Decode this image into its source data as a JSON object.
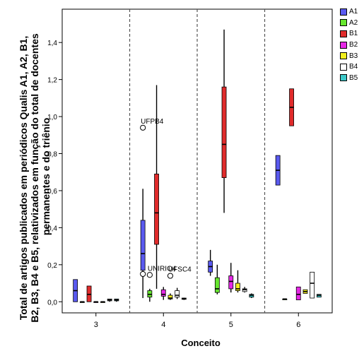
{
  "chart_data": {
    "type": "boxplot",
    "xlabel": "Conceito",
    "ylabel_lines": [
      "Total de artigos publicados em periódicos Qualis A1, A2, B1,",
      "B2, B3, B4 e B5, relativizados em função do total de docentes",
      "permanentes e do triênio"
    ],
    "categories": [
      "3",
      "4",
      "5",
      "6"
    ],
    "ylim": [
      -0.06,
      1.58
    ],
    "yticks": [
      0.0,
      0.2,
      0.4,
      0.6,
      0.8,
      1.0,
      1.2,
      1.4
    ],
    "ytick_labels": [
      "0,0",
      "0,2",
      "0,4",
      "0,6",
      "0,8",
      "1,0",
      "1,2",
      "1,4"
    ],
    "group_separators": "dashed",
    "grid": false,
    "legend_position": "right",
    "series": [
      {
        "name": "A1",
        "color": "#5a5af0"
      },
      {
        "name": "A2",
        "color": "#66e62e"
      },
      {
        "name": "B1",
        "color": "#e02b2b"
      },
      {
        "name": "B2",
        "color": "#e628e6"
      },
      {
        "name": "B3",
        "color": "#f2f01e"
      },
      {
        "name": "B4",
        "color": "#ffffff"
      },
      {
        "name": "B5",
        "color": "#3cc8c8"
      }
    ],
    "boxes": [
      {
        "category": "3",
        "series": "A1",
        "min": 0.0,
        "q1": 0.0,
        "median": 0.06,
        "q3": 0.12,
        "max": 0.12
      },
      {
        "category": "3",
        "series": "A2",
        "min": 0.0,
        "q1": 0.0,
        "median": 0.0,
        "q3": 0.0,
        "max": 0.0
      },
      {
        "category": "3",
        "series": "B1",
        "min": 0.0,
        "q1": 0.0,
        "median": 0.04,
        "q3": 0.085,
        "max": 0.085
      },
      {
        "category": "3",
        "series": "B2",
        "min": 0.0,
        "q1": 0.0,
        "median": 0.0,
        "q3": 0.0,
        "max": 0.0
      },
      {
        "category": "3",
        "series": "B3",
        "min": 0.0,
        "q1": 0.0,
        "median": 0.0,
        "q3": 0.0,
        "max": 0.0
      },
      {
        "category": "3",
        "series": "B4",
        "min": 0.0,
        "q1": 0.005,
        "median": 0.01,
        "q3": 0.015,
        "max": 0.015
      },
      {
        "category": "3",
        "series": "B5",
        "min": 0.0,
        "q1": 0.005,
        "median": 0.01,
        "q3": 0.015,
        "max": 0.015
      },
      {
        "category": "4",
        "series": "A1",
        "min": 0.02,
        "q1": 0.17,
        "median": 0.26,
        "q3": 0.44,
        "max": 0.61
      },
      {
        "category": "4",
        "series": "A2",
        "min": 0.0,
        "q1": 0.025,
        "median": 0.04,
        "q3": 0.06,
        "max": 0.07
      },
      {
        "category": "4",
        "series": "B1",
        "min": 0.07,
        "q1": 0.31,
        "median": 0.48,
        "q3": 0.69,
        "max": 1.17
      },
      {
        "category": "4",
        "series": "B2",
        "min": 0.01,
        "q1": 0.03,
        "median": 0.04,
        "q3": 0.065,
        "max": 0.08
      },
      {
        "category": "4",
        "series": "B3",
        "min": 0.01,
        "q1": 0.015,
        "median": 0.02,
        "q3": 0.035,
        "max": 0.045
      },
      {
        "category": "4",
        "series": "B4",
        "min": 0.015,
        "q1": 0.025,
        "median": 0.035,
        "q3": 0.06,
        "max": 0.075
      },
      {
        "category": "4",
        "series": "B5",
        "min": 0.01,
        "q1": 0.013,
        "median": 0.017,
        "q3": 0.02,
        "max": 0.022
      },
      {
        "category": "5",
        "series": "A1",
        "min": 0.14,
        "q1": 0.16,
        "median": 0.19,
        "q3": 0.22,
        "max": 0.28
      },
      {
        "category": "5",
        "series": "A2",
        "min": 0.04,
        "q1": 0.05,
        "median": 0.07,
        "q3": 0.13,
        "max": 0.2
      },
      {
        "category": "5",
        "series": "B1",
        "min": 0.48,
        "q1": 0.67,
        "median": 0.85,
        "q3": 1.16,
        "max": 1.47
      },
      {
        "category": "5",
        "series": "B2",
        "min": 0.05,
        "q1": 0.07,
        "median": 0.11,
        "q3": 0.14,
        "max": 0.21
      },
      {
        "category": "5",
        "series": "B3",
        "min": 0.05,
        "q1": 0.06,
        "median": 0.07,
        "q3": 0.1,
        "max": 0.17
      },
      {
        "category": "5",
        "series": "B4",
        "min": 0.05,
        "q1": 0.055,
        "median": 0.065,
        "q3": 0.07,
        "max": 0.08
      },
      {
        "category": "5",
        "series": "B5",
        "min": 0.02,
        "q1": 0.025,
        "median": 0.035,
        "q3": 0.04,
        "max": 0.045
      },
      {
        "category": "6",
        "series": "A1",
        "min": 0.63,
        "q1": 0.63,
        "median": 0.71,
        "q3": 0.79,
        "max": 0.79
      },
      {
        "category": "6",
        "series": "A2",
        "min": 0.015,
        "q1": 0.015,
        "median": 0.015,
        "q3": 0.015,
        "max": 0.015
      },
      {
        "category": "6",
        "series": "B1",
        "min": 0.95,
        "q1": 0.95,
        "median": 1.05,
        "q3": 1.15,
        "max": 1.15
      },
      {
        "category": "6",
        "series": "B2",
        "min": 0.01,
        "q1": 0.01,
        "median": 0.04,
        "q3": 0.08,
        "max": 0.08
      },
      {
        "category": "6",
        "series": "B3",
        "min": 0.045,
        "q1": 0.045,
        "median": 0.055,
        "q3": 0.065,
        "max": 0.065
      },
      {
        "category": "6",
        "series": "B4",
        "min": 0.02,
        "q1": 0.02,
        "median": 0.1,
        "q3": 0.16,
        "max": 0.16
      },
      {
        "category": "6",
        "series": "B5",
        "min": 0.025,
        "q1": 0.025,
        "median": 0.035,
        "q3": 0.04,
        "max": 0.04
      }
    ],
    "outliers": [
      {
        "category": "4",
        "series": "A1",
        "value": 0.94,
        "label": "UFPB4"
      },
      {
        "category": "4",
        "series": "A1",
        "value": 0.15,
        "label": ""
      },
      {
        "category": "4",
        "series": "A2",
        "value": 0.145,
        "label": "UNIRIO4"
      },
      {
        "category": "4",
        "series": "B3",
        "value": 0.14,
        "label": "UFSC4"
      }
    ]
  }
}
